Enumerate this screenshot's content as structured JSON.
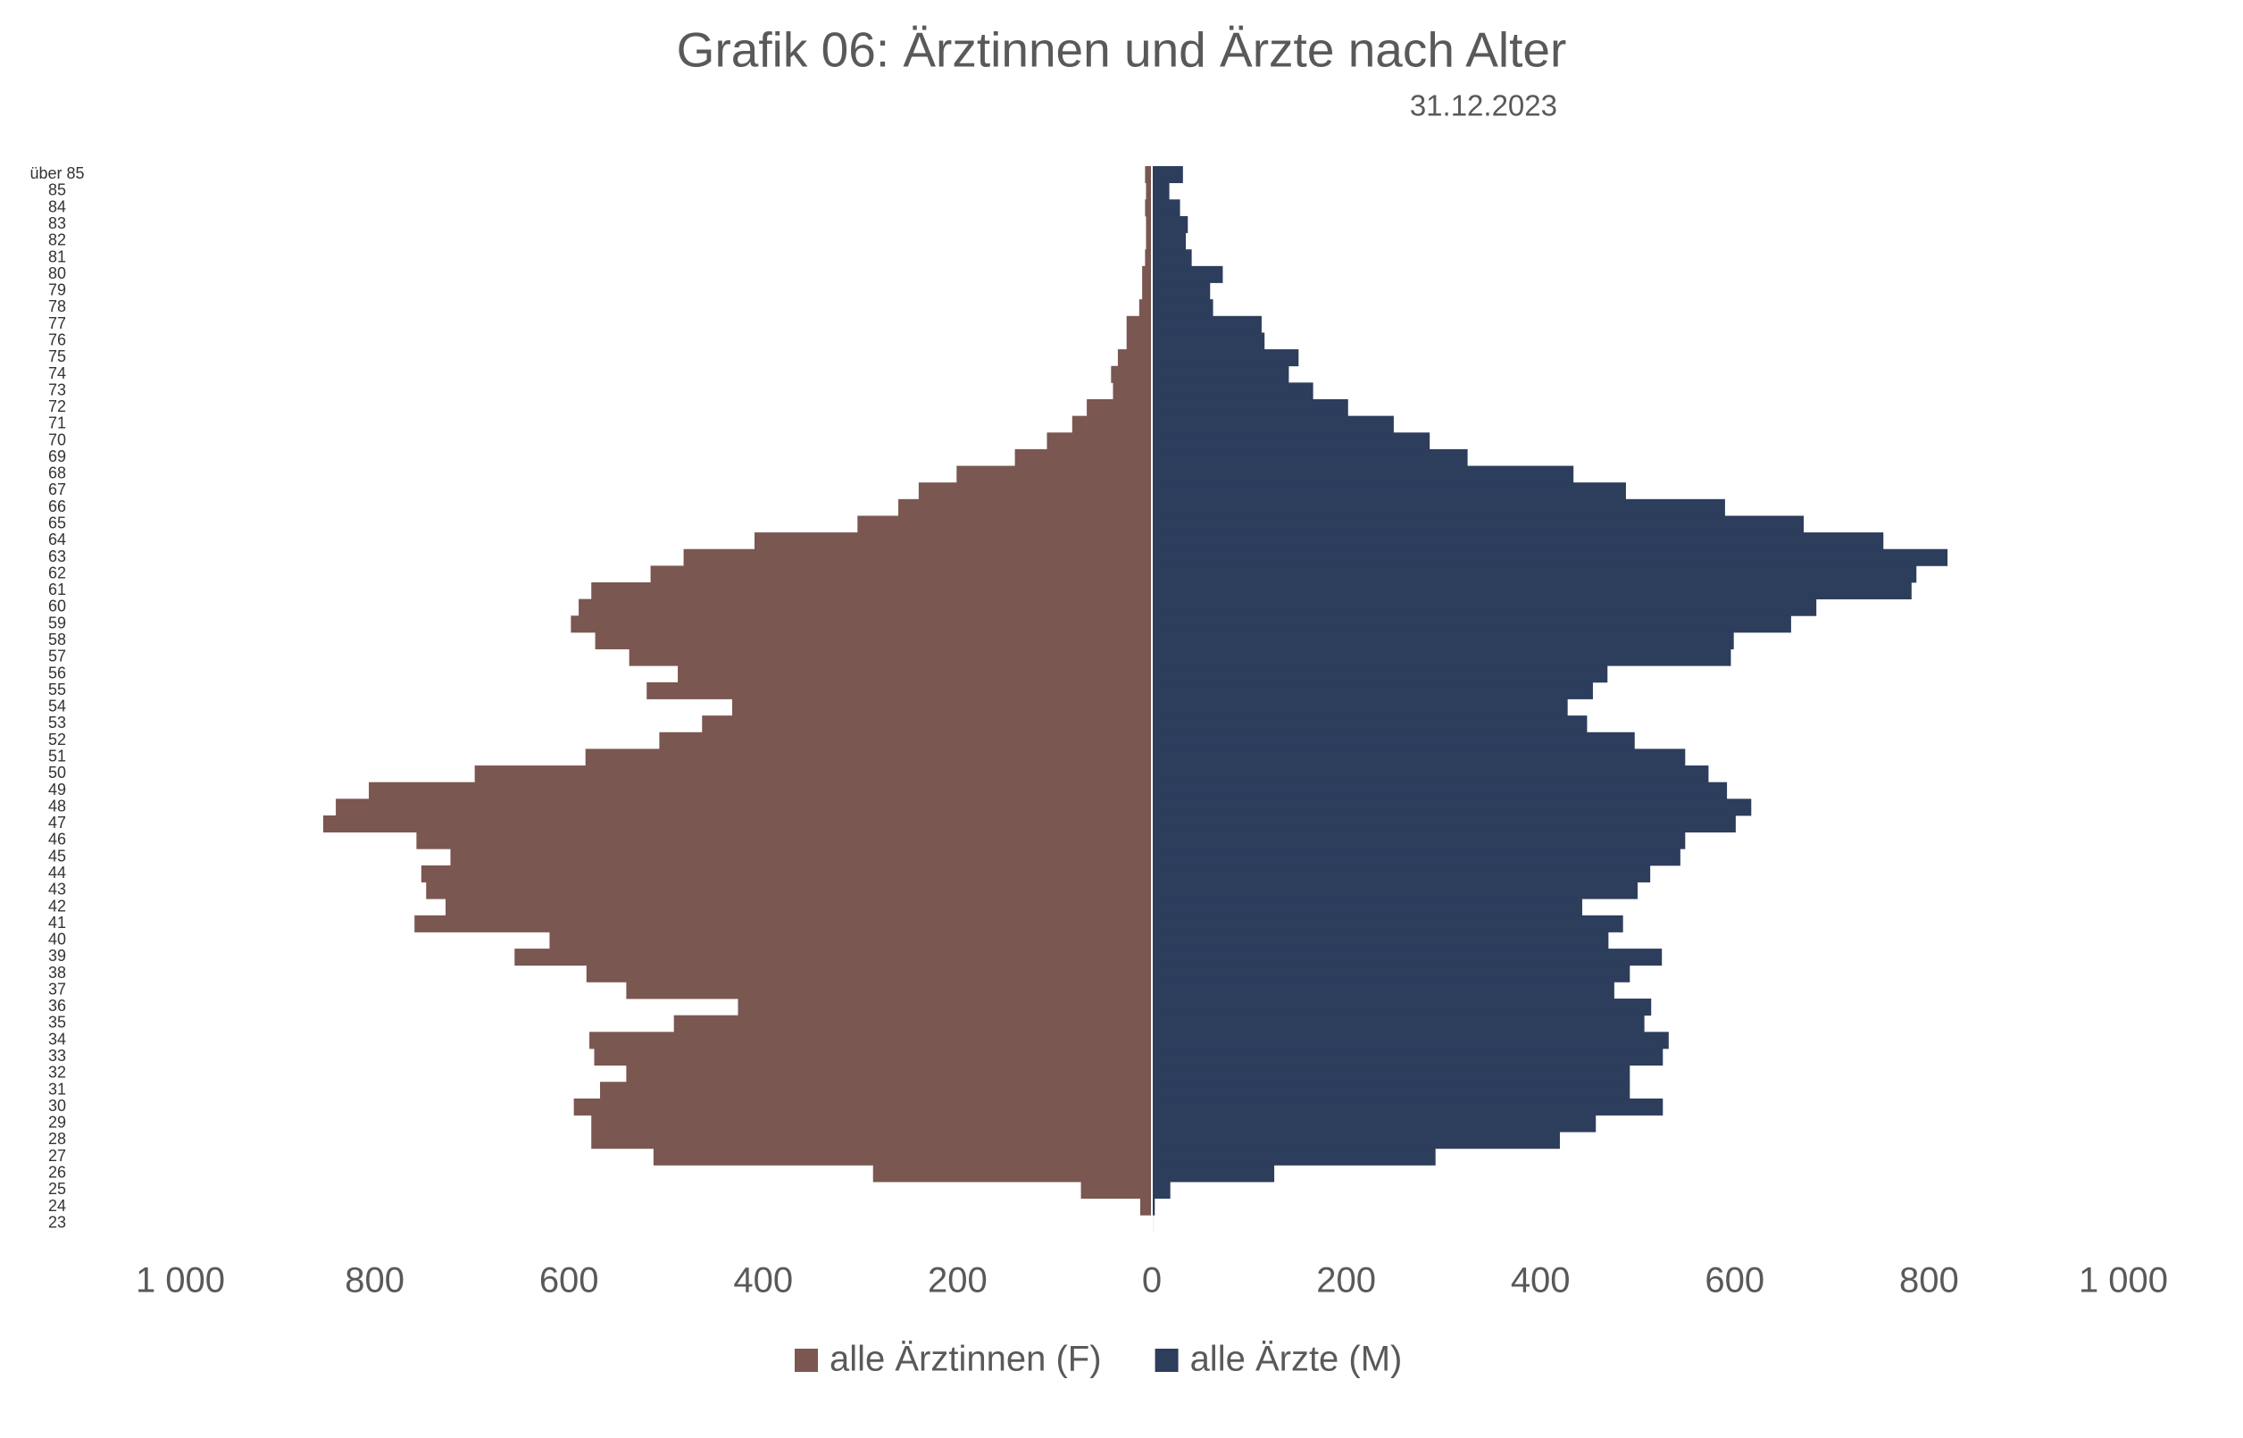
{
  "chart_data": {
    "type": "pyramid",
    "title": "Grafik 06: Ärztinnen und Ärzte nach Alter",
    "subtitle": "31.12.2023",
    "categories": [
      "über 85",
      "85",
      "84",
      "83",
      "82",
      "81",
      "80",
      "79",
      "78",
      "77",
      "76",
      "75",
      "74",
      "73",
      "72",
      "71",
      "70",
      "69",
      "68",
      "67",
      "66",
      "65",
      "64",
      "63",
      "62",
      "61",
      "60",
      "59",
      "58",
      "57",
      "56",
      "55",
      "54",
      "53",
      "52",
      "51",
      "50",
      "49",
      "48",
      "47",
      "46",
      "45",
      "44",
      "43",
      "42",
      "41",
      "40",
      "39",
      "38",
      "37",
      "36",
      "35",
      "34",
      "33",
      "32",
      "31",
      "30",
      "29",
      "28",
      "27",
      "26",
      "25",
      "24",
      "23"
    ],
    "series": [
      {
        "name": "alle Ärztinnen (F)",
        "color": "#7a5750",
        "values": [
          7,
          6,
          7,
          6,
          6,
          7,
          10,
          10,
          13,
          26,
          26,
          35,
          42,
          40,
          67,
          82,
          108,
          141,
          201,
          240,
          261,
          303,
          409,
          482,
          516,
          577,
          590,
          598,
          573,
          538,
          488,
          520,
          432,
          463,
          507,
          583,
          697,
          806,
          840,
          853,
          757,
          722,
          752,
          747,
          727,
          759,
          620,
          656,
          582,
          541,
          426,
          492,
          579,
          574,
          541,
          568,
          595,
          577,
          577,
          513,
          287,
          73,
          12,
          0
        ]
      },
      {
        "name": "alle Ärzte (M)",
        "color": "#2d3d5c",
        "values": [
          32,
          18,
          29,
          37,
          35,
          41,
          73,
          60,
          63,
          113,
          116,
          151,
          141,
          166,
          202,
          249,
          286,
          325,
          434,
          488,
          590,
          671,
          753,
          819,
          787,
          782,
          684,
          658,
          599,
          596,
          469,
          454,
          428,
          448,
          497,
          549,
          573,
          592,
          617,
          601,
          549,
          544,
          513,
          500,
          443,
          485,
          470,
          525,
          492,
          476,
          514,
          507,
          532,
          526,
          492,
          492,
          526,
          457,
          420,
          292,
          126,
          19,
          3,
          1
        ]
      }
    ],
    "xlim": [
      -1000,
      1000
    ],
    "xticks": [
      {
        "value": -1000,
        "label": "1 000"
      },
      {
        "value": -800,
        "label": "800"
      },
      {
        "value": -600,
        "label": "600"
      },
      {
        "value": -400,
        "label": "400"
      },
      {
        "value": -200,
        "label": "200"
      },
      0,
      200,
      400,
      600,
      800,
      {
        "value": 1000,
        "label": "1 000"
      }
    ]
  }
}
